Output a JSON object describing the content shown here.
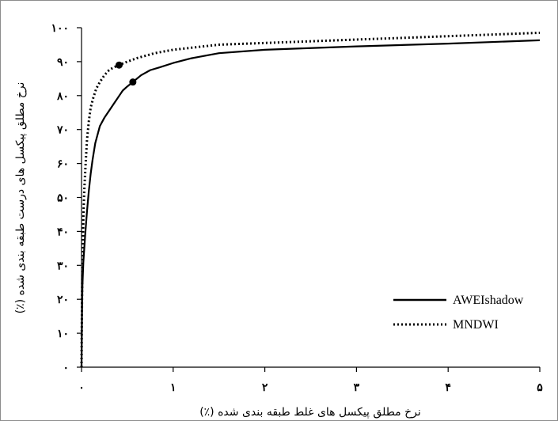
{
  "chart_data": {
    "type": "line",
    "title": "",
    "xlabel": "نرخ مطلق پیکسل های غلط طبقه بندی شده (٪)",
    "ylabel": "نرخ مطلق پیکسل های درست طبقه بندی شده (٪)",
    "xlim": [
      0,
      5
    ],
    "ylim": [
      0,
      100
    ],
    "x_ticks": [
      {
        "value": 0,
        "label": "۰"
      },
      {
        "value": 1,
        "label": "۱"
      },
      {
        "value": 2,
        "label": "۲"
      },
      {
        "value": 3,
        "label": "۳"
      },
      {
        "value": 4,
        "label": "۴"
      },
      {
        "value": 5,
        "label": "۵"
      }
    ],
    "y_ticks": [
      {
        "value": 0,
        "label": "۰"
      },
      {
        "value": 10,
        "label": "۱۰"
      },
      {
        "value": 20,
        "label": "۲۰"
      },
      {
        "value": 30,
        "label": "۳۰"
      },
      {
        "value": 40,
        "label": "۴۰"
      },
      {
        "value": 50,
        "label": "۵۰"
      },
      {
        "value": 60,
        "label": "۶۰"
      },
      {
        "value": 70,
        "label": "۷۰"
      },
      {
        "value": 80,
        "label": "۸۰"
      },
      {
        "value": 90,
        "label": "۹۰"
      },
      {
        "value": 100,
        "label": "۱۰۰"
      }
    ],
    "grid": false,
    "legend_position": "bottom-right",
    "series": [
      {
        "name": "AWEIshadow",
        "style": "solid",
        "color": "#000000",
        "x": [
          0,
          0.005,
          0.01,
          0.02,
          0.04,
          0.06,
          0.08,
          0.1,
          0.12,
          0.15,
          0.2,
          0.25,
          0.3,
          0.35,
          0.4,
          0.45,
          0.5,
          0.56,
          0.65,
          0.75,
          0.85,
          1.0,
          1.2,
          1.5,
          2.0,
          2.5,
          3.0,
          4.0,
          5.0
        ],
        "y": [
          0,
          15,
          24,
          31,
          39,
          46,
          52,
          57,
          61,
          66,
          71,
          73.5,
          75.5,
          77.5,
          79.5,
          81.5,
          82.7,
          84,
          86,
          87.5,
          88.3,
          89.6,
          91,
          92.5,
          93.5,
          94,
          94.5,
          95.3,
          96.3
        ]
      },
      {
        "name": "MNDWI",
        "style": "dotted",
        "color": "#000000",
        "x": [
          0,
          0.003,
          0.006,
          0.01,
          0.015,
          0.02,
          0.03,
          0.045,
          0.06,
          0.08,
          0.1,
          0.13,
          0.16,
          0.2,
          0.25,
          0.3,
          0.35,
          0.41,
          0.5,
          0.6,
          0.8,
          1.0,
          1.5,
          2.0,
          3.0,
          4.0,
          5.0
        ],
        "y": [
          0,
          12,
          22,
          30,
          36,
          44,
          52,
          60,
          67,
          72.5,
          76.5,
          79.5,
          82,
          84,
          86,
          87.5,
          88.3,
          89,
          90,
          91,
          92.5,
          93.5,
          95,
          95.5,
          96.5,
          97.5,
          98.5
        ]
      }
    ],
    "markers": [
      {
        "series": "AWEIshadow",
        "x": 0.56,
        "y": 84
      },
      {
        "series": "MNDWI",
        "x": 0.41,
        "y": 89
      }
    ]
  }
}
